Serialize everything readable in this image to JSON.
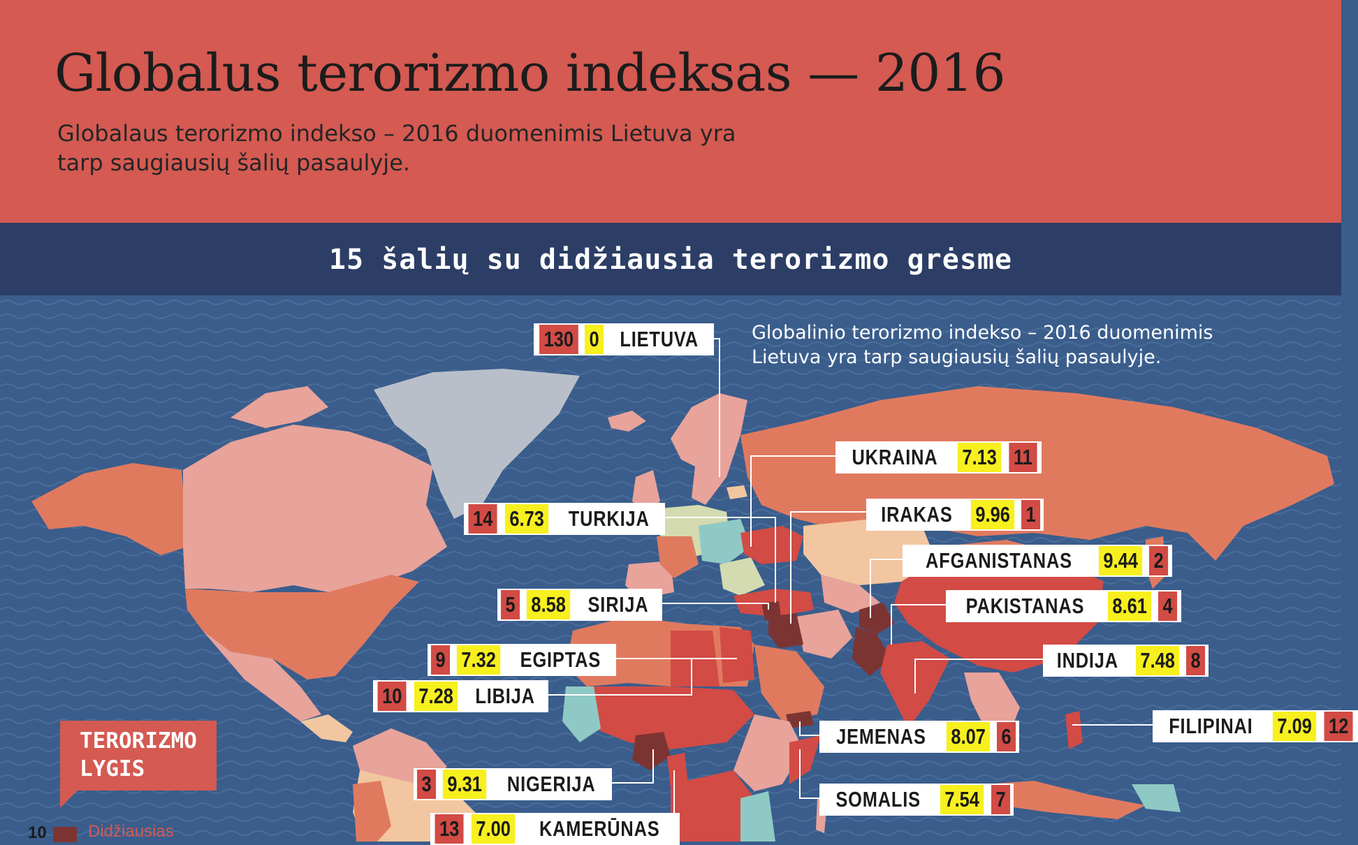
{
  "header": {
    "title": "Globalus terorizmo indeksas — 2016",
    "subtitle_line1": "Globalaus terorizmo indekso – 2016 duomenimis Lietuva yra",
    "subtitle_line2": "tarp saugiausių šalių pasaulyje."
  },
  "section": {
    "title": "15 šalių su didžiausia terorizmo grėsme"
  },
  "map_note": {
    "line1": "Globalinio terorizmo indekso – 2016 duomenimis",
    "line2": "Lietuva yra tarp saugiausių šalių pasaulyje."
  },
  "countries": [
    {
      "id": "lietuva",
      "rank": "130",
      "score": "0",
      "name": "LIETUVA"
    },
    {
      "id": "ukraina",
      "rank": "11",
      "score": "7.13",
      "name": "UKRAINA"
    },
    {
      "id": "turkija",
      "rank": "14",
      "score": "6.73",
      "name": "TURKIJA"
    },
    {
      "id": "irakas",
      "rank": "1",
      "score": "9.96",
      "name": "IRAKAS"
    },
    {
      "id": "afganistanas",
      "rank": "2",
      "score": "9.44",
      "name": "AFGANISTANAS"
    },
    {
      "id": "sirija",
      "rank": "5",
      "score": "8.58",
      "name": "SIRIJA"
    },
    {
      "id": "pakistanas",
      "rank": "4",
      "score": "8.61",
      "name": "PAKISTANAS"
    },
    {
      "id": "egiptas",
      "rank": "9",
      "score": "7.32",
      "name": "EGIPTAS"
    },
    {
      "id": "indija",
      "rank": "8",
      "score": "7.48",
      "name": "INDIJA"
    },
    {
      "id": "libija",
      "rank": "10",
      "score": "7.28",
      "name": "LIBIJA"
    },
    {
      "id": "filipinai",
      "rank": "12",
      "score": "7.09",
      "name": "FILIPINAI"
    },
    {
      "id": "jemenas",
      "rank": "6",
      "score": "8.07",
      "name": "JEMENAS"
    },
    {
      "id": "nigerija",
      "rank": "3",
      "score": "9.31",
      "name": "NIGERIJA"
    },
    {
      "id": "somalis",
      "rank": "7",
      "score": "7.54",
      "name": "SOMALIS"
    },
    {
      "id": "kamerunas",
      "rank": "13",
      "score": "7.00",
      "name": "KAMERŪNAS"
    }
  ],
  "legend": {
    "title_line1": "TERORIZMO",
    "title_line2": "LYGIS",
    "tick": "10",
    "caption": "Didžiausias"
  },
  "colors": {
    "header_bg": "#d45a52",
    "bar_bg": "#2c3e66",
    "ocean": "#3a5d8c",
    "rank_bg": "#d24b45",
    "score_bg": "#f7f01e",
    "highest_level": "#7c3432"
  }
}
